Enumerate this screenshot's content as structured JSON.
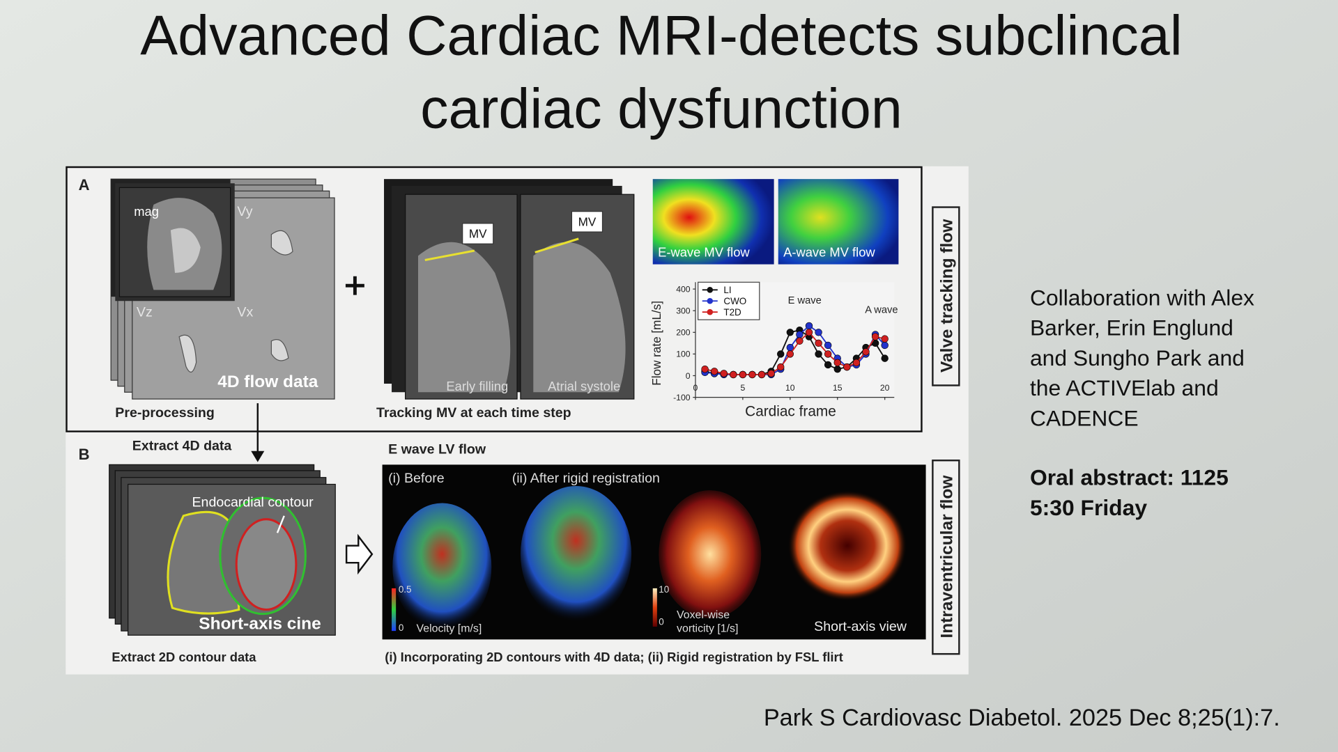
{
  "title": [
    "Advanced Cardiac MRI-detects subclincal",
    "cardiac dysfunction"
  ],
  "figure": {
    "panel_a": {
      "label": "A",
      "stack_labels": [
        "mag",
        "Vy",
        "Vz",
        "Vx",
        "4D flow data"
      ],
      "preprocessing": "Pre-processing",
      "mv_labels": [
        "MV",
        "MV"
      ],
      "frame_labels": [
        "Early filling",
        "Atrial systole"
      ],
      "tracking": "Tracking MV at each time step",
      "map_labels": [
        "E-wave MV flow",
        "A-wave MV flow"
      ],
      "side_label": "Valve tracking flow",
      "chart": {
        "type": "line",
        "y_label": "Flow rate [mL/s]",
        "x_label": "Cardiac frame",
        "annotations": [
          "E wave",
          "A wave"
        ],
        "x": [
          1,
          2,
          3,
          4,
          5,
          6,
          7,
          8,
          9,
          10,
          11,
          12,
          13,
          14,
          15,
          16,
          17,
          18,
          19,
          20
        ],
        "series": [
          {
            "name": "LI",
            "color": "#111111",
            "values": [
              20,
              10,
              10,
              5,
              5,
              5,
              5,
              20,
              100,
              200,
              210,
              180,
              100,
              50,
              30,
              40,
              80,
              130,
              150,
              80
            ]
          },
          {
            "name": "CWO",
            "color": "#2233cc",
            "values": [
              15,
              10,
              5,
              5,
              5,
              5,
              5,
              5,
              30,
              130,
              190,
              230,
              200,
              140,
              80,
              40,
              50,
              100,
              190,
              140
            ]
          },
          {
            "name": "T2D",
            "color": "#d02020",
            "values": [
              30,
              20,
              10,
              5,
              5,
              5,
              5,
              10,
              40,
              100,
              160,
              200,
              150,
              100,
              60,
              40,
              60,
              110,
              180,
              170
            ]
          }
        ],
        "xlim": [
          0,
          21
        ],
        "ylim": [
          -100,
          400
        ],
        "xticks": [
          0,
          5,
          10,
          15,
          20
        ],
        "yticks": [
          -100,
          0,
          100,
          200,
          300,
          400
        ],
        "legend": "upper left"
      }
    },
    "panel_b": {
      "label": "B",
      "extract_4d": "Extract 4D data",
      "contour": "Endocardial contour",
      "cine": "Short-axis cine",
      "extract_2d": "Extract 2D contour data",
      "lv_flow": "E wave LV flow",
      "before": "(i) Before",
      "after": "(ii) After rigid registration",
      "velocity_scale": [
        "0.5",
        "0"
      ],
      "velocity": "Velocity [m/s]",
      "vorticity_scale": [
        "10",
        "0"
      ],
      "vorticity": [
        "Voxel-wise",
        "vorticity [1/s]"
      ],
      "short_axis_view": "Short-axis view",
      "caption": "(i) Incorporating 2D contours with 4D data; (ii) Rigid registration by FSL flirt",
      "side_label": "Intraventricular flow"
    }
  },
  "notes": {
    "collaboration": [
      "Collaboration with Alex",
      "Barker, Erin Englund",
      "and Sungho Park and",
      "the ACTIVElab and",
      "CADENCE"
    ],
    "oral": [
      "Oral abstract: 1125",
      "5:30 Friday"
    ]
  },
  "citation": "Park S  Cardiovasc Diabetol. 2025 Dec 8;25(1):7."
}
